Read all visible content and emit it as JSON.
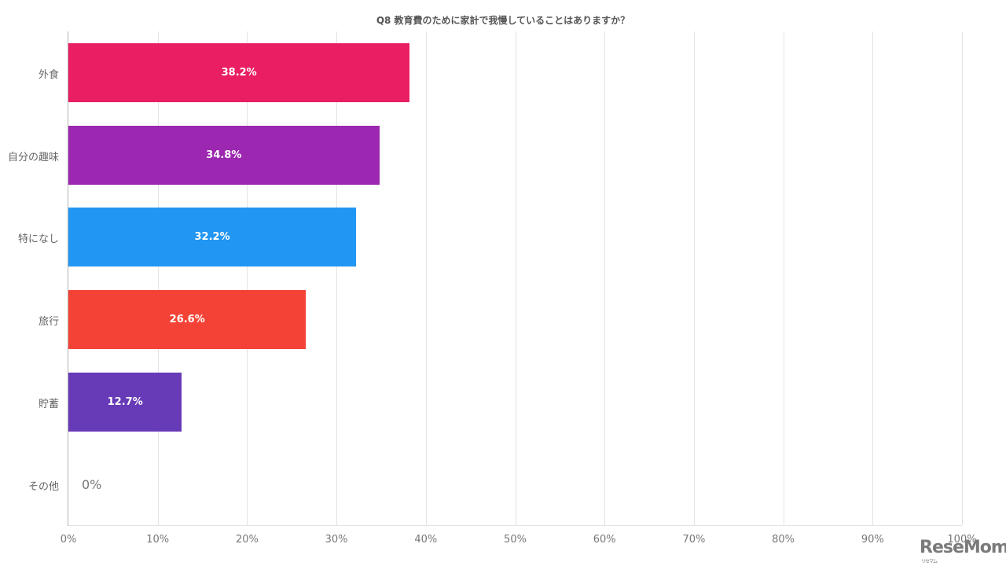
{
  "chart_data": {
    "type": "bar",
    "orientation": "horizontal",
    "title": "Q8 教育費のために家計で我慢していることはありますか？",
    "categories": [
      "外食",
      "自分の趣味",
      "特になし",
      "旅行",
      "貯蓄",
      "その他"
    ],
    "values": [
      38.2,
      34.8,
      32.2,
      26.6,
      12.7,
      0
    ],
    "value_labels": [
      "38.2%",
      "34.8%",
      "32.2%",
      "26.6%",
      "12.7%",
      "0%"
    ],
    "colors": [
      "#e91e63",
      "#9c27b0",
      "#2196f3",
      "#f44336",
      "#673ab7",
      "#cccccc"
    ],
    "xlabel": "",
    "ylabel": "",
    "xlim": [
      0,
      100
    ],
    "x_ticks": [
      "0%",
      "10%",
      "20%",
      "30%",
      "40%",
      "50%",
      "60%",
      "70%",
      "80%",
      "90%",
      "100%"
    ],
    "grid": true,
    "legend": "none"
  },
  "watermark": {
    "text": "ReseMom",
    "sub": "リセマム"
  }
}
